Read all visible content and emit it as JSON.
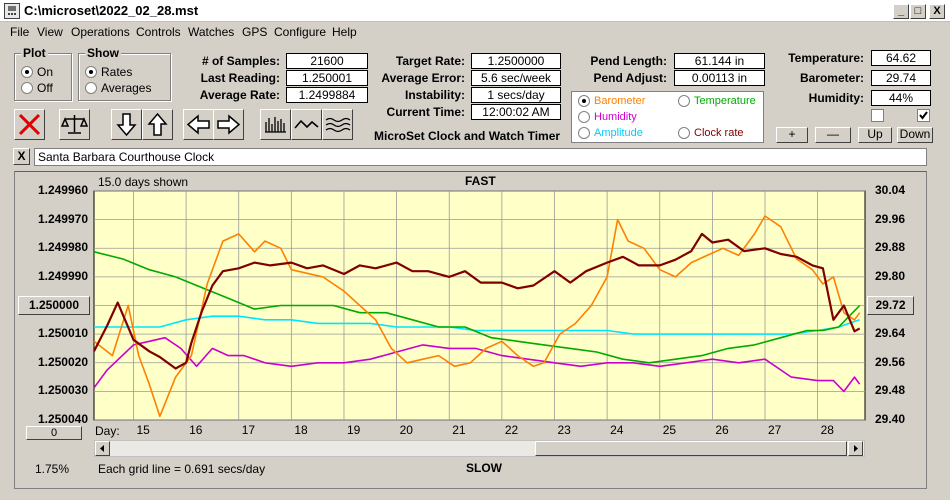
{
  "window": {
    "title": "C:\\microset\\2022_02_28.mst",
    "btn_min": "_",
    "btn_max": "□",
    "btn_close": "X"
  },
  "menu": [
    "File",
    "View",
    "Operations",
    "Controls",
    "Watches",
    "GPS",
    "Configure",
    "Help"
  ],
  "plot_group": {
    "title": "Plot",
    "on": "On",
    "off": "Off",
    "selected": "On"
  },
  "show_group": {
    "title": "Show",
    "rates": "Rates",
    "averages": "Averages",
    "selected": "Rates"
  },
  "stats": {
    "samples_label": "# of Samples:",
    "samples": "21600",
    "last_label": "Last Reading:",
    "last": "1.250001",
    "avg_rate_label": "Average Rate:",
    "avg_rate": "1.2499884",
    "target_label": "Target Rate:",
    "target": "1.2500000",
    "avg_error_label": "Average Error:",
    "avg_error": "5.6 sec/week",
    "instability_label": "Instability:",
    "instability": "1 secs/day",
    "time_label": "Current Time:",
    "time": "12:00:02 AM",
    "pend_len_label": "Pend Length:",
    "pend_len": "61.144 in",
    "pend_adj_label": "Pend Adjust:",
    "pend_adj": "0.00113 in",
    "temp_label": "Temperature:",
    "temp": "64.62",
    "baro_label": "Barometer:",
    "baro": "29.74",
    "hum_label": "Humidity:",
    "hum": "44%"
  },
  "app_caption": "MicroSet Clock and Watch Timer",
  "legend": {
    "barometer": "Barometer",
    "temperature": "Temperature",
    "humidity": "Humidity",
    "amplitude": "Amplitude",
    "clock_rate": "Clock rate",
    "colors": {
      "barometer": "#ff8000",
      "temperature": "#00aa00",
      "humidity": "#cc00cc",
      "amplitude": "#00ccff",
      "clock_rate": "#800000"
    }
  },
  "adjust_buttons": {
    "plus": "+",
    "minus": "—",
    "up": "Up",
    "down": "Down"
  },
  "checkbox_states": [
    false,
    true
  ],
  "clear_label": "X",
  "clock_name": "Santa Barbara Courthouse Clock",
  "chart_header": {
    "days_shown": "15.0 days shown",
    "fast": "FAST",
    "slow": "SLOW",
    "grid_note": "Each grid line = 0.691 secs/day",
    "percent": "1.75%",
    "day_label": "Day:",
    "left_button": "1.250000",
    "right_button": "29.72",
    "bottom_button": "0"
  },
  "chart_data": {
    "type": "line",
    "x_label": "Day",
    "x_ticks": [
      15,
      16,
      17,
      18,
      19,
      20,
      21,
      22,
      23,
      24,
      25,
      26,
      27,
      28
    ],
    "xlim": [
      14.25,
      28.9
    ],
    "y_left_ticks": [
      "1.249960",
      "1.249970",
      "1.249980",
      "1.249990",
      "1.250000",
      "1.250010",
      "1.250020",
      "1.250030",
      "1.250040"
    ],
    "y_left_range": [
      1.24996,
      1.25004
    ],
    "y_right_ticks": [
      "30.04",
      "29.96",
      "29.88",
      "29.80",
      "29.72",
      "29.64",
      "29.56",
      "29.48",
      "29.40"
    ],
    "y_right_range": [
      30.04,
      29.4
    ],
    "series": [
      {
        "name": "Clock rate",
        "color": "#800000",
        "x": [
          14.25,
          14.5,
          14.7,
          15.0,
          15.3,
          15.5,
          15.8,
          16.0,
          16.1,
          16.3,
          16.5,
          16.7,
          17.0,
          17.3,
          17.6,
          18.0,
          18.3,
          18.6,
          19.0,
          19.3,
          19.6,
          20.0,
          20.3,
          20.6,
          21.0,
          21.3,
          21.6,
          22.0,
          22.3,
          22.6,
          23.0,
          23.3,
          23.6,
          24.0,
          24.3,
          24.6,
          25.0,
          25.3,
          25.6,
          25.8,
          26.0,
          26.3,
          26.6,
          27.0,
          27.3,
          27.6,
          27.9,
          28.1,
          28.3,
          28.5,
          28.7,
          28.8
        ],
        "y": [
          1.250016,
          1.250007,
          1.249999,
          1.250012,
          1.250016,
          1.250018,
          1.250022,
          1.25002,
          1.250013,
          1.250002,
          1.249993,
          1.249988,
          1.249987,
          1.249985,
          1.249986,
          1.249985,
          1.249987,
          1.249986,
          1.249989,
          1.249986,
          1.249987,
          1.249985,
          1.249988,
          1.249988,
          1.24999,
          1.249988,
          1.249992,
          1.249992,
          1.249994,
          1.249993,
          1.249988,
          1.249992,
          1.249988,
          1.249985,
          1.249983,
          1.249986,
          1.249986,
          1.249984,
          1.249981,
          1.249975,
          1.249978,
          1.249977,
          1.249981,
          1.24998,
          1.249982,
          1.249983,
          1.249986,
          1.249987,
          1.250005,
          1.25,
          1.250009,
          1.250008
        ]
      },
      {
        "name": "Barometer",
        "color": "#ff8000",
        "x": [
          14.25,
          14.6,
          14.9,
          15.1,
          15.3,
          15.5,
          15.8,
          16.1,
          16.4,
          16.7,
          17.0,
          17.3,
          17.5,
          17.8,
          18.0,
          18.3,
          18.6,
          19.0,
          19.3,
          19.6,
          19.9,
          20.2,
          20.5,
          20.8,
          21.1,
          21.4,
          21.7,
          22.0,
          22.3,
          22.6,
          22.8,
          23.1,
          23.4,
          23.7,
          24.0,
          24.2,
          24.4,
          24.7,
          25.0,
          25.3,
          25.6,
          25.9,
          26.2,
          26.5,
          26.8,
          27.0,
          27.3,
          27.6,
          27.9,
          28.1,
          28.3,
          28.5,
          28.7,
          28.8
        ],
        "y": [
          29.62,
          29.58,
          29.72,
          29.58,
          29.5,
          29.41,
          29.52,
          29.58,
          29.78,
          29.9,
          29.92,
          29.87,
          29.9,
          29.88,
          29.82,
          29.81,
          29.8,
          29.76,
          29.72,
          29.68,
          29.6,
          29.56,
          29.57,
          29.58,
          29.55,
          29.56,
          29.6,
          29.62,
          29.58,
          29.55,
          29.56,
          29.64,
          29.67,
          29.72,
          29.8,
          29.96,
          29.9,
          29.88,
          29.82,
          29.8,
          29.84,
          29.86,
          29.88,
          29.86,
          29.92,
          29.97,
          29.94,
          29.85,
          29.82,
          29.78,
          29.8,
          29.7,
          29.68,
          29.7
        ]
      },
      {
        "name": "Temperature",
        "color": "#00aa00",
        "x": [
          14.25,
          14.8,
          15.3,
          15.8,
          16.3,
          16.8,
          17.3,
          17.8,
          18.3,
          18.8,
          19.3,
          19.8,
          20.3,
          20.8,
          21.3,
          21.8,
          22.3,
          22.8,
          23.3,
          23.8,
          24.3,
          24.8,
          25.3,
          25.8,
          26.3,
          26.8,
          27.3,
          27.8,
          28.1,
          28.4,
          28.6,
          28.8
        ],
        "y": [
          29.87,
          29.85,
          29.82,
          29.8,
          29.77,
          29.74,
          29.71,
          29.72,
          29.72,
          29.72,
          29.7,
          29.7,
          29.68,
          29.66,
          29.66,
          29.63,
          29.62,
          29.61,
          29.6,
          29.59,
          29.57,
          29.56,
          29.57,
          29.58,
          29.6,
          29.61,
          29.63,
          29.65,
          29.65,
          29.66,
          29.69,
          29.72
        ]
      },
      {
        "name": "Amplitude",
        "color": "#00e5ff",
        "x": [
          14.25,
          15.0,
          15.5,
          16.0,
          16.5,
          17.0,
          17.5,
          18.0,
          18.5,
          19.0,
          19.5,
          20.0,
          20.5,
          21.0,
          21.5,
          22.0,
          22.5,
          23.0,
          23.5,
          24.0,
          24.5,
          25.0,
          25.5,
          26.0,
          26.5,
          27.0,
          27.5,
          28.0,
          28.4,
          28.8
        ],
        "y": [
          29.66,
          29.66,
          29.66,
          29.68,
          29.69,
          29.69,
          29.68,
          29.68,
          29.67,
          29.67,
          29.67,
          29.66,
          29.66,
          29.66,
          29.65,
          29.65,
          29.65,
          29.65,
          29.65,
          29.65,
          29.64,
          29.64,
          29.64,
          29.64,
          29.64,
          29.64,
          29.64,
          29.65,
          29.66,
          29.68
        ]
      },
      {
        "name": "Humidity",
        "color": "#cc00cc",
        "x": [
          14.25,
          14.5,
          15.0,
          15.3,
          15.6,
          15.9,
          16.2,
          16.5,
          16.8,
          17.1,
          17.5,
          18.0,
          18.5,
          19.0,
          19.5,
          20.0,
          20.5,
          21.0,
          21.5,
          22.0,
          22.5,
          23.0,
          23.5,
          24.0,
          24.5,
          25.0,
          25.5,
          26.0,
          26.5,
          27.0,
          27.5,
          28.0,
          28.3,
          28.5,
          28.7,
          28.8
        ],
        "y": [
          29.49,
          29.54,
          29.61,
          29.62,
          29.63,
          29.6,
          29.55,
          29.6,
          29.58,
          29.58,
          29.56,
          29.55,
          29.56,
          29.56,
          29.57,
          29.59,
          29.61,
          29.6,
          29.6,
          29.58,
          29.57,
          29.56,
          29.55,
          29.56,
          29.56,
          29.55,
          29.56,
          29.57,
          29.56,
          29.57,
          29.52,
          29.51,
          29.51,
          29.48,
          29.52,
          29.5
        ]
      }
    ]
  }
}
